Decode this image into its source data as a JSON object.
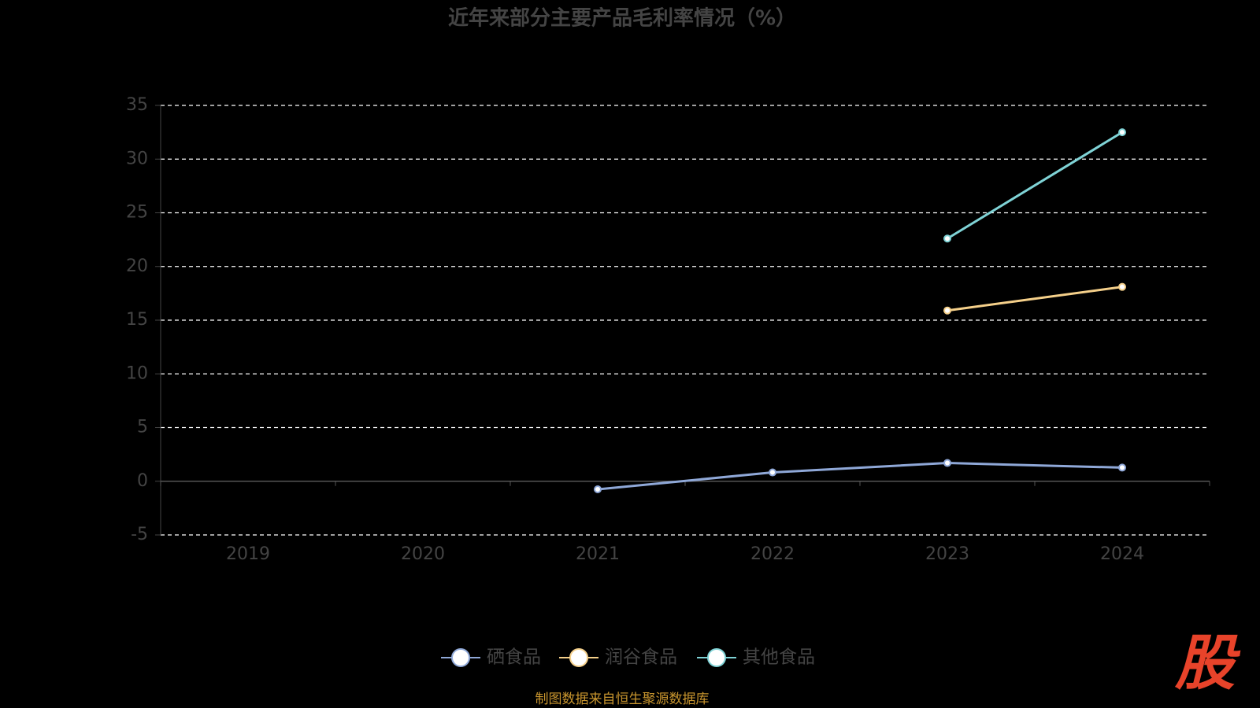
{
  "chart_data": {
    "type": "line",
    "title": "近年来部分主要产品毛利率情况（%）",
    "categories": [
      "2019",
      "2020",
      "2021",
      "2022",
      "2023",
      "2024"
    ],
    "series": [
      {
        "name": "硒食品",
        "color": "#8fa8d8",
        "values": [
          null,
          null,
          -0.75,
          0.82,
          1.7,
          1.27
        ]
      },
      {
        "name": "润谷食品",
        "color": "#f5d08a",
        "values": [
          null,
          null,
          null,
          null,
          15.9,
          18.1
        ]
      },
      {
        "name": "其他食品",
        "color": "#7fd3d6",
        "values": [
          null,
          null,
          null,
          null,
          22.6,
          32.5
        ]
      }
    ],
    "ylim": [
      -5,
      35
    ],
    "yticks": [
      -5,
      0,
      5,
      10,
      15,
      20,
      25,
      30,
      35
    ],
    "grid": true,
    "legend": "bottom",
    "source": "制图数据来自恒生聚源数据库",
    "logo": "股"
  }
}
